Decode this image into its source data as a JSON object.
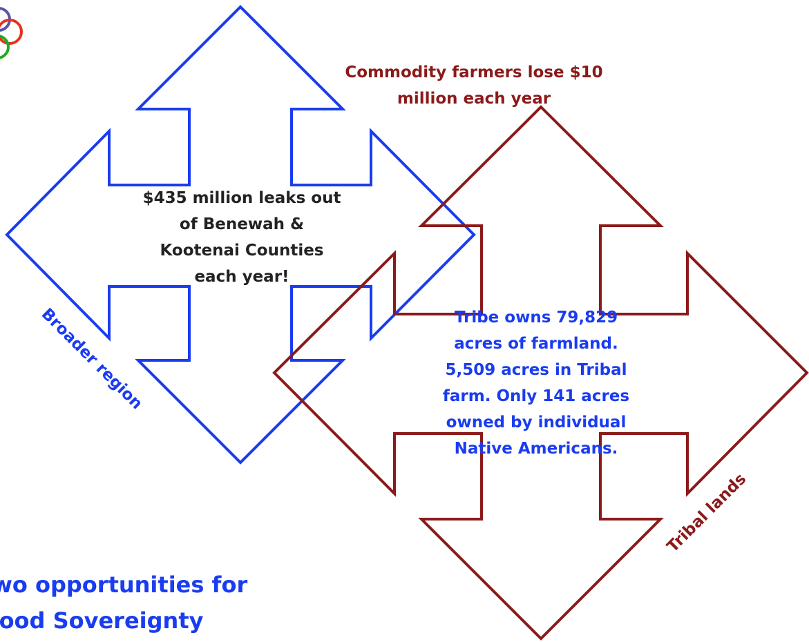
{
  "commodity": {
    "lines": [
      "Commodity farmers lose $10",
      "million each year"
    ]
  },
  "leak": {
    "lines": [
      "$435 million leaks out",
      "of Benewah &",
      "Kootenai Counties",
      "each year!"
    ]
  },
  "tribe": {
    "lines": [
      "Tribe owns 79,829",
      "acres of farmland.",
      "5,509 acres in Tribal",
      "farm. Only 141 acres",
      "owned by individual",
      "Native Americans."
    ]
  },
  "broader_label": "Broader region",
  "tribal_label": "Tribal lands",
  "footer": {
    "lines": [
      "Two opportunities for",
      "Food Sovereignty"
    ]
  }
}
